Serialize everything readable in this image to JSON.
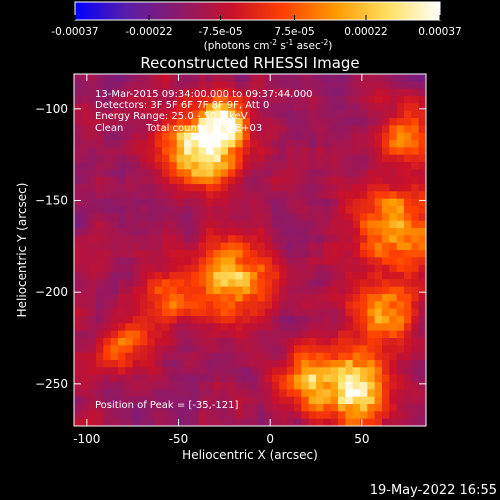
{
  "colorbar": {
    "tick_labels": [
      "-0.00037",
      "-0.00022",
      "-7.5e-05",
      "7.5e-05",
      "0.00022",
      "0.00037"
    ],
    "tick_values": [
      -0.00037,
      -0.00022,
      -7.5e-05,
      7.5e-05,
      0.00022,
      0.00037
    ],
    "range": [
      -0.00037,
      0.00037
    ],
    "units_main": "(photons cm",
    "units_sup1": "-2",
    "units_mid": " s",
    "units_sup2": "-1",
    "units_end": " asec",
    "units_sup3": "-2",
    "units_close": ")",
    "colors": [
      "#0000ff",
      "#5a1ea8",
      "#8b1a6a",
      "#c8102a",
      "#ff4000",
      "#ff9a00",
      "#ffe060",
      "#ffffff"
    ]
  },
  "chart_data": {
    "type": "heatmap",
    "title": "Reconstructed RHESSI Image",
    "xlabel": "Heliocentric X (arcsec)",
    "ylabel": "Heliocentric Y (arcsec)",
    "xlim": [
      -107,
      85
    ],
    "ylim": [
      -273,
      -81
    ],
    "x_ticks": [
      -100,
      -50,
      0,
      50
    ],
    "y_ticks": [
      -100,
      -150,
      -200,
      -250
    ],
    "x_tick_labels": [
      "-100",
      "-50",
      "0",
      "50"
    ],
    "y_tick_labels": [
      "−100",
      "−150",
      "−200",
      "−250"
    ],
    "grid": false,
    "value_units": "photons cm-2 s-1 asec-2",
    "sources": [
      {
        "x": -38,
        "y": -121,
        "peak": 0.00037,
        "sigma": 13
      },
      {
        "x": -25,
        "y": -108,
        "peak": 0.0002,
        "sigma": 9
      },
      {
        "x": -20,
        "y": -192,
        "peak": 0.00024,
        "sigma": 14
      },
      {
        "x": -55,
        "y": -205,
        "peak": 0.00012,
        "sigma": 10
      },
      {
        "x": 45,
        "y": -252,
        "peak": 0.00028,
        "sigma": 14
      },
      {
        "x": 20,
        "y": -248,
        "peak": 0.00016,
        "sigma": 10
      },
      {
        "x": 70,
        "y": -165,
        "peak": 0.0002,
        "sigma": 16
      },
      {
        "x": 62,
        "y": -210,
        "peak": 0.00016,
        "sigma": 12
      },
      {
        "x": 75,
        "y": -115,
        "peak": 0.00012,
        "sigma": 10
      },
      {
        "x": -80,
        "y": -230,
        "peak": 8e-05,
        "sigma": 10
      }
    ],
    "background_level": -0.00012,
    "annotations": {
      "time": "13-Mar-2015 09:34:00.000 to 09:37:44.000",
      "detectors": "Detectors: 3F 5F 6F 7F 8F 9F, Att 0",
      "energy": "Energy Range: 25.0 - 50.0 keV",
      "clean_label": "Clean",
      "total_counts": "Total counts: 5.36E+03",
      "peak": "Position of Peak = [-35,-121]"
    }
  },
  "footer": {
    "date": "19-May-2022 16:55"
  }
}
